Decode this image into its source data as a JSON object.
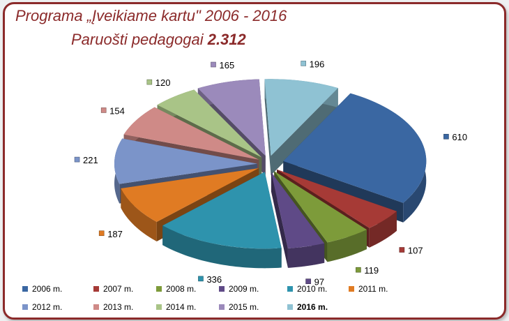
{
  "title": {
    "line1": "Programa „Įveikiame kartu\" 2006 - 2016",
    "line2_prefix": "Paruošti pedagogai ",
    "line2_total": "2.312"
  },
  "chart_data": {
    "type": "pie",
    "title": "Programa „Įveikiame kartu\" 2006 - 2016",
    "subtitle": "Paruošti pedagogai 2.312",
    "legend_position": "bottom",
    "categories": [
      "2006 m.",
      "2007 m.",
      "2008 m.",
      "2009 m.",
      "2010 m.",
      "2011 m.",
      "2012 m.",
      "2013 m.",
      "2014 m.",
      "2015 m.",
      "2016 m."
    ],
    "values": [
      610,
      107,
      119,
      97,
      336,
      187,
      221,
      154,
      120,
      165,
      196
    ],
    "data_labels": [
      "610",
      "107",
      "119",
      "97",
      "336",
      "187",
      "221",
      "154",
      "120",
      "165",
      "196"
    ],
    "colors": [
      "#3a67a2",
      "#a63a36",
      "#7d9b3a",
      "#5f4a87",
      "#2e93ad",
      "#e07b23",
      "#7b94c9",
      "#cf8a87",
      "#a9c487",
      "#9b8abb",
      "#8fc2d3"
    ],
    "legend_bold_index": 10
  }
}
